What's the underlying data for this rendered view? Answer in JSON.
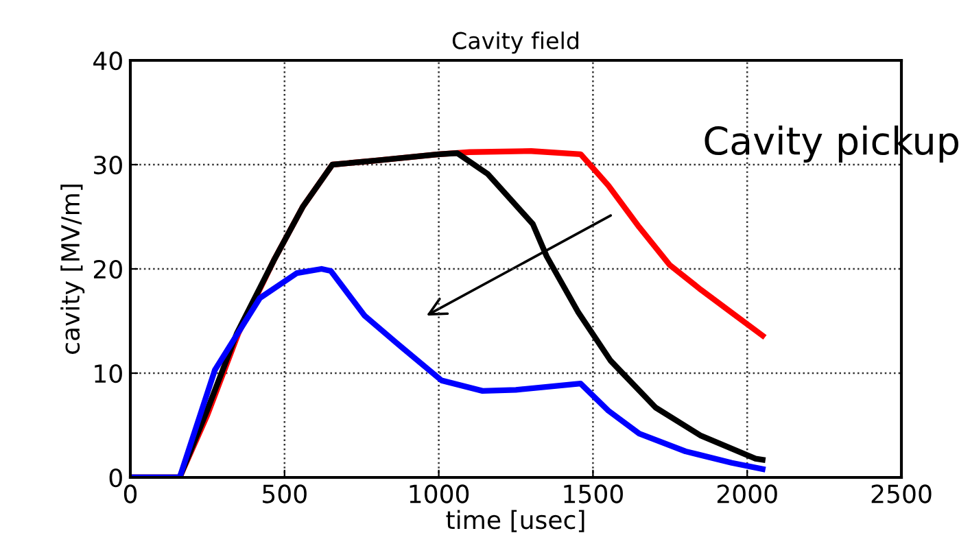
{
  "chart_data": {
    "type": "line",
    "title": "Cavity field",
    "xlabel": "time [usec]",
    "ylabel": "cavity [MV/m]",
    "xlim": [
      0,
      2500
    ],
    "xticks": [
      0,
      500,
      1000,
      1500,
      2000,
      2500
    ],
    "ylim": [
      0,
      40
    ],
    "yticks": [
      0,
      10,
      20,
      30,
      40
    ],
    "grid": true,
    "line_style": "solid",
    "marker": "none",
    "series": [
      {
        "color": "#ff0000",
        "x": [
          0,
          160,
          250,
          350,
          465,
          560,
          655,
          800,
          1000,
          1100,
          1300,
          1460,
          1550,
          1650,
          1748,
          1850,
          1950,
          2050
        ],
        "values": [
          0,
          0,
          6,
          13.8,
          20.8,
          26,
          30,
          30.4,
          31,
          31.2,
          31.3,
          31,
          28,
          24,
          20.4,
          18,
          15.8,
          13.6
        ]
      },
      {
        "color": "#000000",
        "x": [
          0,
          160,
          250,
          345,
          465,
          560,
          655,
          800,
          1000,
          1060,
          1159,
          1305,
          1350,
          1451,
          1557,
          1703,
          1850,
          2027,
          2050
        ],
        "values": [
          0,
          0,
          6.5,
          13.8,
          20.8,
          26,
          30,
          30.4,
          31,
          31.1,
          29.1,
          24.3,
          21.2,
          15.9,
          11.2,
          6.7,
          4,
          1.8,
          1.7
        ]
      },
      {
        "color": "#0000ff",
        "x": [
          0,
          160,
          274,
          420,
          540,
          620,
          650,
          760,
          863,
          1009,
          1142,
          1250,
          1460,
          1550,
          1650,
          1800,
          1950,
          2050
        ],
        "values": [
          0,
          0,
          10.3,
          17.2,
          19.6,
          20,
          19.8,
          15.5,
          12.9,
          9.3,
          8.3,
          8.4,
          9,
          6.4,
          4.2,
          2.5,
          1.4,
          0.8
        ]
      }
    ],
    "annotations": [
      "Cavity pickup"
    ]
  }
}
